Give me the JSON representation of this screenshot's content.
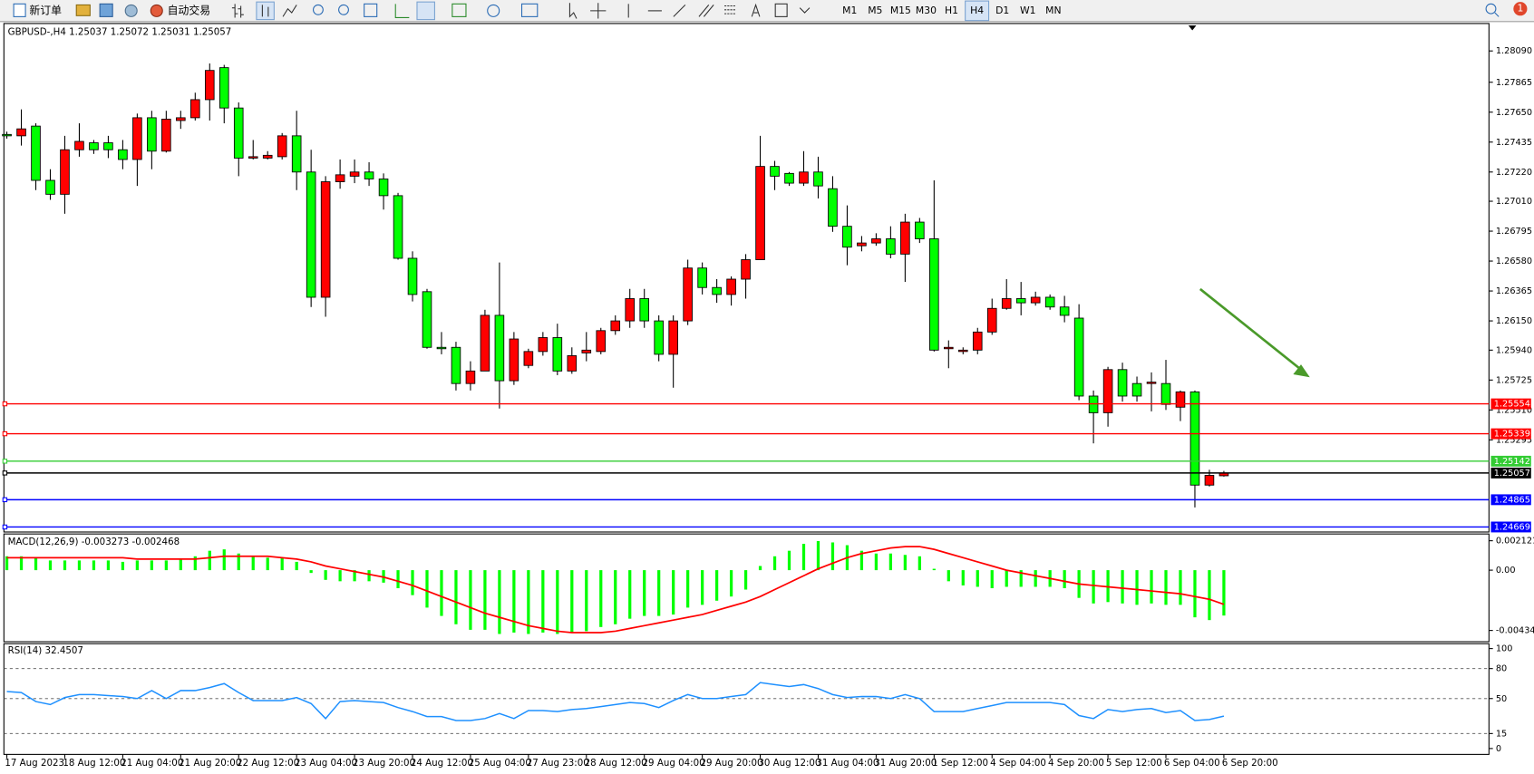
{
  "toolbar": {
    "new_order": "新订单",
    "auto_trading": "自动交易",
    "timeframes": [
      "M1",
      "M5",
      "M15",
      "M30",
      "H1",
      "H4",
      "D1",
      "W1",
      "MN"
    ],
    "active_timeframe": "H4",
    "notifications": 1
  },
  "chart_data": [
    {
      "type": "candlestick",
      "title": "GBPUSD-,H4  1.25037 1.25072 1.25031 1.25057",
      "categories": [
        "17 Aug 2023",
        null,
        null,
        null,
        "18 Aug 12:00",
        null,
        null,
        null,
        "21 Aug 04:00",
        null,
        null,
        null,
        "21 Aug 20:00",
        null,
        null,
        null,
        "22 Aug 12:00",
        null,
        null,
        null,
        "23 Aug 04:00",
        null,
        null,
        null,
        "23 Aug 20:00",
        null,
        null,
        null,
        "24 Aug 12:00",
        null,
        null,
        null,
        "25 Aug 04:00",
        null,
        null,
        null,
        "27 Aug 23:00",
        null,
        null,
        null,
        "28 Aug 12:00",
        null,
        null,
        null,
        "29 Aug 04:00",
        null,
        null,
        null,
        "29 Aug 20:00",
        null,
        null,
        null,
        "30 Aug 12:00",
        null,
        null,
        null,
        "31 Aug 04:00",
        null,
        null,
        null,
        "31 Aug 20:00",
        null,
        null,
        null,
        "1 Sep 12:00",
        null,
        null,
        null,
        "4 Sep 04:00",
        null,
        null,
        null,
        "4 Sep 20:00",
        null,
        null,
        null,
        "5 Sep 12:00",
        null,
        null,
        null,
        "6 Sep 04:00",
        null,
        null,
        null,
        "6 Sep 20:00"
      ],
      "open": [
        1.2749,
        1.2748,
        1.2755,
        1.2716,
        1.2706,
        1.2738,
        1.2743,
        1.2743,
        1.2738,
        1.2731,
        1.2761,
        1.2737,
        1.2759,
        1.2761,
        1.2774,
        1.2797,
        1.2768,
        1.2732,
        1.2732,
        1.2733,
        1.2748,
        1.2722,
        1.2632,
        1.2715,
        1.2719,
        1.2722,
        1.2717,
        1.2705,
        1.266,
        1.2636,
        1.2596,
        1.2596,
        1.257,
        1.2579,
        1.2619,
        1.2572,
        1.2583,
        1.2593,
        1.2603,
        1.2579,
        1.2592,
        1.2593,
        1.2608,
        1.2615,
        1.2631,
        1.2615,
        1.2591,
        1.2615,
        1.2653,
        1.2639,
        1.2634,
        1.2645,
        1.2659,
        1.2726,
        1.2721,
        1.2714,
        1.2722,
        1.271,
        1.2683,
        1.2669,
        1.2671,
        1.2674,
        1.2663,
        1.2686,
        1.2674,
        1.2595,
        1.2593,
        1.2594,
        1.2607,
        1.2624,
        1.2631,
        1.2628,
        1.2632,
        1.2625,
        1.2617,
        1.2561,
        1.2549,
        1.258,
        1.257,
        1.257,
        1.257,
        1.2553,
        1.2564,
        1.2497,
        1.25037
      ],
      "high": [
        1.2751,
        1.2767,
        1.2757,
        1.2724,
        1.2748,
        1.2757,
        1.2745,
        1.2748,
        1.2745,
        1.2764,
        1.2766,
        1.2766,
        1.2766,
        1.2779,
        1.28,
        1.2799,
        1.2772,
        1.2745,
        1.2737,
        1.275,
        1.2766,
        1.2738,
        1.2719,
        1.2731,
        1.2731,
        1.2729,
        1.2721,
        1.2707,
        1.2665,
        1.2638,
        1.2607,
        1.26,
        1.2586,
        1.2623,
        1.2657,
        1.2607,
        1.2595,
        1.2607,
        1.2613,
        1.2596,
        1.2607,
        1.261,
        1.2619,
        1.2638,
        1.2638,
        1.2619,
        1.2619,
        1.2659,
        1.2657,
        1.2645,
        1.2647,
        1.2663,
        1.2748,
        1.273,
        1.2722,
        1.2737,
        1.2733,
        1.2719,
        1.2698,
        1.2676,
        1.2678,
        1.2683,
        1.2692,
        1.2689,
        1.2716,
        1.2601,
        1.2596,
        1.261,
        1.2631,
        1.2645,
        1.2643,
        1.2636,
        1.2634,
        1.2633,
        1.2627,
        1.2565,
        1.2582,
        1.2585,
        1.2575,
        1.2578,
        1.2587,
        1.2565,
        1.2565,
        1.2508,
        1.25072
      ],
      "low": [
        1.2746,
        1.2741,
        1.2709,
        1.2702,
        1.2692,
        1.2733,
        1.2735,
        1.2732,
        1.2724,
        1.2712,
        1.2724,
        1.2736,
        1.2753,
        1.2759,
        1.2759,
        1.2757,
        1.2719,
        1.2731,
        1.2731,
        1.2731,
        1.2709,
        1.2625,
        1.2618,
        1.271,
        1.2714,
        1.2712,
        1.2695,
        1.2659,
        1.2629,
        1.2595,
        1.2591,
        1.2565,
        1.2565,
        1.2579,
        1.2552,
        1.2569,
        1.2581,
        1.259,
        1.2576,
        1.2577,
        1.2586,
        1.2591,
        1.2605,
        1.261,
        1.261,
        1.2586,
        1.2567,
        1.2612,
        1.2634,
        1.2628,
        1.2626,
        1.2631,
        1.2659,
        1.2709,
        1.2712,
        1.2712,
        1.2703,
        1.2679,
        1.2655,
        1.2665,
        1.2669,
        1.266,
        1.2643,
        1.2671,
        1.2593,
        1.2581,
        1.2591,
        1.2591,
        1.2605,
        1.2623,
        1.2619,
        1.2626,
        1.2623,
        1.2614,
        1.2558,
        1.2527,
        1.2539,
        1.2557,
        1.2557,
        1.255,
        1.2551,
        1.2543,
        1.2481,
        1.2496,
        1.25031
      ],
      "close": [
        1.2748,
        1.2753,
        1.2716,
        1.2706,
        1.2738,
        1.2744,
        1.2738,
        1.2738,
        1.2731,
        1.2761,
        1.2737,
        1.276,
        1.2761,
        1.2774,
        1.2795,
        1.2768,
        1.2732,
        1.2733,
        1.2734,
        1.2748,
        1.2722,
        1.2632,
        1.2715,
        1.272,
        1.2722,
        1.2717,
        1.2705,
        1.266,
        1.2634,
        1.2596,
        1.2595,
        1.257,
        1.2579,
        1.2619,
        1.2572,
        1.2602,
        1.2593,
        1.2603,
        1.2579,
        1.259,
        1.2594,
        1.2608,
        1.2615,
        1.2631,
        1.2615,
        1.2591,
        1.2615,
        1.2653,
        1.2639,
        1.2634,
        1.2645,
        1.2659,
        1.2726,
        1.2719,
        1.2714,
        1.2722,
        1.2712,
        1.2683,
        1.2668,
        1.2671,
        1.2674,
        1.2663,
        1.2686,
        1.2674,
        1.2594,
        1.2596,
        1.2594,
        1.2607,
        1.2624,
        1.2631,
        1.2628,
        1.2632,
        1.2625,
        1.2619,
        1.2561,
        1.2549,
        1.258,
        1.2561,
        1.2561,
        1.2571,
        1.2555,
        1.2564,
        1.2497,
        1.2504,
        1.25057
      ],
      "up_color": "#ff0000",
      "down_color": "#00ff00",
      "ylim": [
        1.24633,
        1.28266
      ],
      "yticks": [
        {
          "value": 1.2809,
          "label": "1.28090"
        },
        1.27865,
        {
          "value": 1.2765,
          "label": "1.27650"
        },
        1.27435,
        {
          "value": 1.2722,
          "label": "1.27220"
        },
        {
          "value": 1.2701,
          "label": "1.27010"
        },
        1.26795,
        {
          "value": 1.2658,
          "label": "1.26580"
        },
        1.26365,
        {
          "value": 1.2615,
          "label": "1.26150"
        },
        {
          "value": 1.2594,
          "label": "1.25940"
        },
        1.25725,
        {
          "value": 1.2551,
          "label": "1.25510"
        },
        1.25295
      ],
      "levels": [
        {
          "value": 1.25554,
          "color": "#ff0000"
        },
        {
          "value": 1.25339,
          "color": "#ff0000"
        },
        {
          "value": 1.25142,
          "color": "#33cc33"
        },
        {
          "value": 1.25057,
          "color": "#000000"
        },
        {
          "value": 1.24865,
          "color": "#0000ff"
        },
        {
          "value": 1.24669,
          "color": "#0000ff"
        }
      ]
    },
    {
      "type": "macd",
      "title": "MACD(12,26,9) -0.003273 -0.002468",
      "histogram": {
        "color": "#00ff00",
        "values": [
          0.001,
          0.001,
          0.0009,
          0.0007,
          0.0007,
          0.0007,
          0.0007,
          0.0007,
          0.0006,
          0.0007,
          0.0007,
          0.0007,
          0.0008,
          0.001,
          0.0014,
          0.0015,
          0.0012,
          0.001,
          0.0009,
          0.0009,
          0.0006,
          -0.0002,
          -0.0007,
          -0.0008,
          -0.0008,
          -0.0008,
          -0.0009,
          -0.0013,
          -0.0018,
          -0.0027,
          -0.0033,
          -0.0039,
          -0.0043,
          -0.0043,
          -0.0046,
          -0.0045,
          -0.0046,
          -0.0045,
          -0.0046,
          -0.0045,
          -0.0044,
          -0.0041,
          -0.0039,
          -0.0035,
          -0.0033,
          -0.0033,
          -0.0032,
          -0.0027,
          -0.0025,
          -0.0022,
          -0.0019,
          -0.0014,
          0.0003,
          0.001,
          0.0014,
          0.0019,
          0.0021,
          0.002,
          0.0018,
          0.0014,
          0.0012,
          0.0012,
          0.0011,
          0.001,
          0.0001,
          -0.0008,
          -0.0011,
          -0.0012,
          -0.0013,
          -0.0012,
          -0.0012,
          -0.0012,
          -0.0012,
          -0.0013,
          -0.002,
          -0.0024,
          -0.0023,
          -0.0024,
          -0.0025,
          -0.0024,
          -0.0025,
          -0.0025,
          -0.0034,
          -0.0036,
          -0.003273
        ]
      },
      "signal": {
        "color": "#ff0000",
        "values": [
          0.0009,
          0.0009,
          0.0009,
          0.0009,
          0.0009,
          0.0009,
          0.0009,
          0.0009,
          0.0009,
          0.0008,
          0.0008,
          0.0008,
          0.0008,
          0.0008,
          0.0009,
          0.001,
          0.001,
          0.001,
          0.001,
          0.0009,
          0.0008,
          0.0006,
          0.0003,
          0.0001,
          -0.0001,
          -0.0003,
          -0.0005,
          -0.0008,
          -0.0011,
          -0.0015,
          -0.0019,
          -0.0023,
          -0.0027,
          -0.0031,
          -0.0034,
          -0.0037,
          -0.004,
          -0.0042,
          -0.0044,
          -0.0045,
          -0.0045,
          -0.0045,
          -0.0044,
          -0.0042,
          -0.004,
          -0.0038,
          -0.0036,
          -0.0034,
          -0.0032,
          -0.0029,
          -0.0026,
          -0.0023,
          -0.0019,
          -0.0014,
          -0.0009,
          -0.0004,
          0.0001,
          0.0005,
          0.0009,
          0.0012,
          0.0014,
          0.0016,
          0.0017,
          0.0017,
          0.0015,
          0.0012,
          0.0009,
          0.0006,
          0.0003,
          0.0,
          -0.0002,
          -0.0004,
          -0.0006,
          -0.0008,
          -0.001,
          -0.0011,
          -0.0012,
          -0.0013,
          -0.0014,
          -0.0015,
          -0.0016,
          -0.0017,
          -0.0019,
          -0.0021,
          -0.002468
        ]
      },
      "ylim": [
        -0.00509,
        0.00254
      ],
      "yticks": [
        0.002121,
        {
          "value": 0,
          "label": "0.00"
        },
        -0.004348
      ]
    },
    {
      "type": "line",
      "title": "RSI(14) 32.4507",
      "values": [
        57,
        56,
        47,
        44,
        51,
        54,
        54,
        53,
        52,
        50,
        58,
        50,
        58,
        58,
        61,
        65,
        56,
        48,
        48,
        48,
        51,
        45,
        30,
        47,
        48,
        47,
        46,
        41,
        37,
        32,
        32,
        28,
        28,
        30,
        35,
        30,
        38,
        38,
        37,
        39,
        40,
        42,
        44,
        46,
        45,
        41,
        48,
        54,
        50,
        50,
        52,
        54,
        66,
        64,
        62,
        64,
        60,
        54,
        51,
        52,
        52,
        50,
        54,
        50,
        37,
        37,
        37,
        40,
        43,
        46,
        46,
        46,
        46,
        44,
        33,
        30,
        39,
        37,
        39,
        40,
        36,
        38,
        28,
        29,
        32.4507
      ],
      "color": "#1e90ff",
      "ylim": [
        0,
        100
      ],
      "yticks": [
        100,
        80,
        50,
        15,
        0
      ],
      "grid": "dashed"
    }
  ]
}
